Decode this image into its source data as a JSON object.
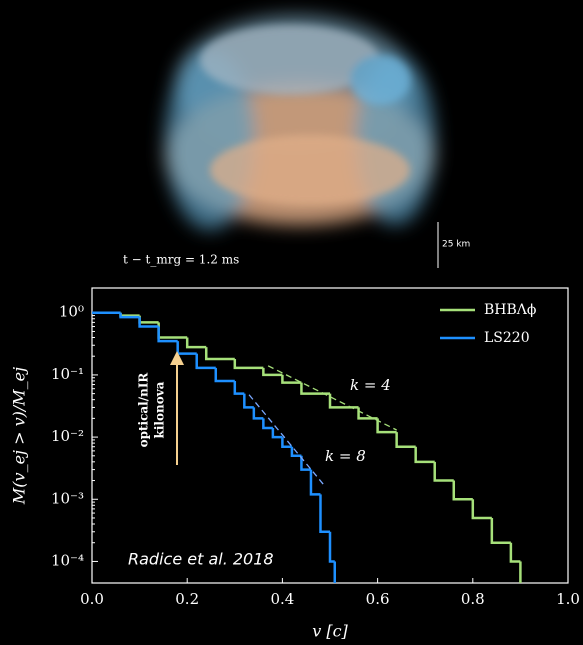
{
  "caption": {
    "time": "t − t_mrg = 1.2 ms",
    "scale": "25 km"
  },
  "chart_data": {
    "type": "step",
    "xlabel": "v [c]",
    "ylabel": "M(v_ej > v)/M_ej",
    "xlim": [
      0,
      1
    ],
    "ylim": [
      4.5e-05,
      2.5
    ],
    "log_y": true,
    "xticks": [
      {
        "value": 0,
        "label": "0.0"
      },
      0.2,
      0.4,
      0.6,
      0.8,
      {
        "value": 1,
        "label": "1.0"
      }
    ],
    "yticks": [
      {
        "value": 1,
        "label": "10⁰"
      },
      {
        "value": 0.1,
        "label": "10⁻¹"
      },
      {
        "value": 0.01,
        "label": "10⁻²"
      },
      {
        "value": 0.001,
        "label": "10⁻³"
      },
      {
        "value": 0.0001,
        "label": "10⁻⁴"
      }
    ],
    "legend": "upper right",
    "series": [
      {
        "name": "BHBΛϕ",
        "color": "#a6e07a",
        "bins": [
          0,
          0.06,
          0.1,
          0.14,
          0.2,
          0.24,
          0.3,
          0.36,
          0.4,
          0.44,
          0.5,
          0.56,
          0.6,
          0.64,
          0.68,
          0.72,
          0.76,
          0.8,
          0.84,
          0.88,
          0.9
        ],
        "values": [
          1,
          0.9,
          0.7,
          0.4,
          0.28,
          0.18,
          0.13,
          0.1,
          0.075,
          0.05,
          0.03,
          0.02,
          0.012,
          0.007,
          0.004,
          0.002,
          0.001,
          0.0005,
          0.0002,
          0.0001
        ]
      },
      {
        "name": "LS220",
        "color": "#1e90ff",
        "bins": [
          0,
          0.06,
          0.1,
          0.14,
          0.18,
          0.22,
          0.26,
          0.3,
          0.32,
          0.34,
          0.36,
          0.38,
          0.4,
          0.42,
          0.44,
          0.46,
          0.48,
          0.5,
          0.51
        ],
        "values": [
          1,
          0.85,
          0.6,
          0.35,
          0.22,
          0.13,
          0.08,
          0.05,
          0.03,
          0.02,
          0.014,
          0.01,
          0.007,
          0.005,
          0.003,
          0.0012,
          0.0003,
          0.0001
        ]
      }
    ],
    "fits": [
      {
        "label": "k = 4",
        "color": "#a6e07a",
        "x": [
          0.37,
          0.64
        ],
        "values": [
          0.14,
          0.013
        ]
      },
      {
        "label": "k = 8",
        "color": "#7aa8ff",
        "x": [
          0.33,
          0.49
        ],
        "values": [
          0.048,
          0.0016
        ]
      }
    ],
    "arrow_label": [
      "optical/nIR",
      "kilonova"
    ],
    "credit": "Radice et al. 2018"
  }
}
